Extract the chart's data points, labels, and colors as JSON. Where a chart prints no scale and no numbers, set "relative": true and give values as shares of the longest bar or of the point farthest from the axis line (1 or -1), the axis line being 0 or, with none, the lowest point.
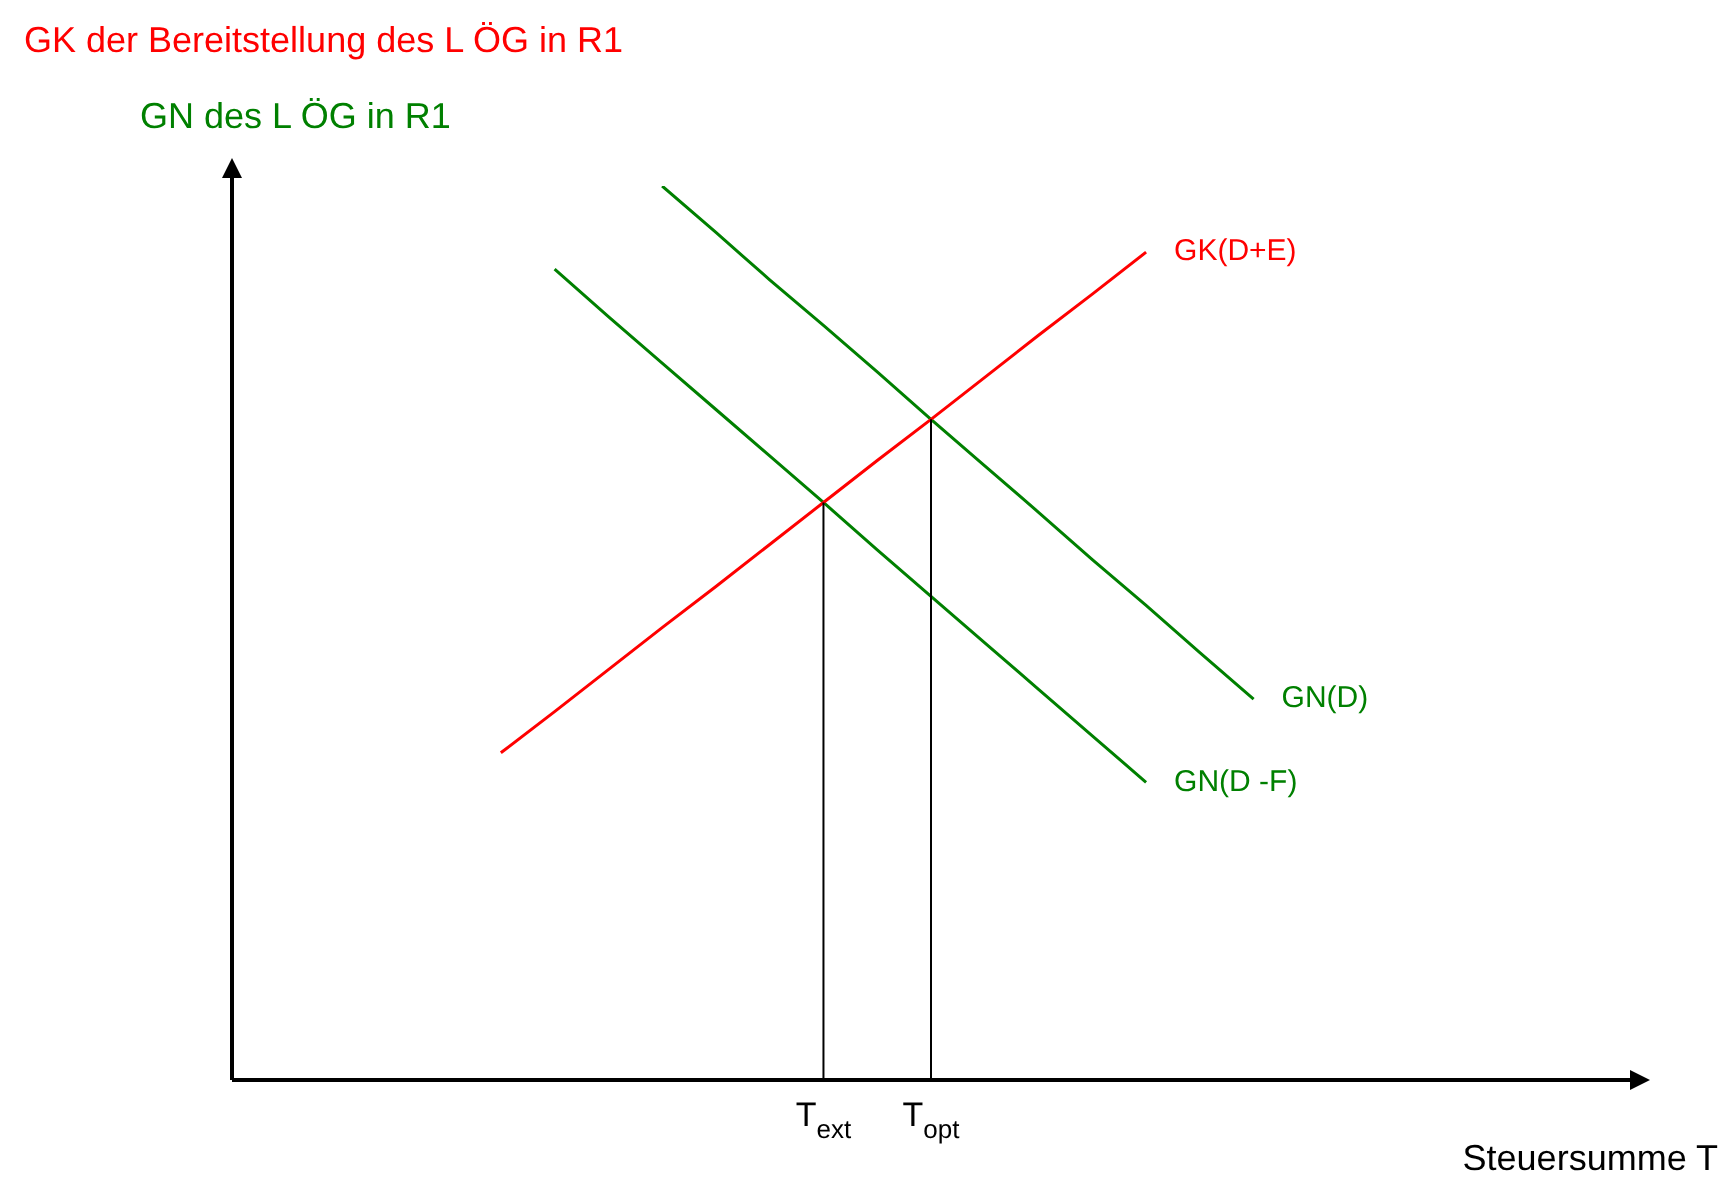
{
  "chart_data": {
    "type": "line",
    "relative": true,
    "ylabel": "GK der Bereitstellung des L ÖG in R1",
    "y2label": "GN des L ÖG in R1",
    "xlabel": "Steuersumme T",
    "legend": false,
    "grid": false,
    "marker": "none",
    "line_style": "solid",
    "categories": [
      null,
      null,
      null,
      null,
      null,
      null,
      null,
      null,
      null,
      null,
      null,
      "T$_{ext}$",
      null,
      "T$_{opt}$",
      null,
      null,
      null,
      null,
      null,
      null,
      null,
      null,
      null,
      null,
      null,
      null,
      null
    ],
    "series": [
      {
        "name": "GK(D+E)",
        "color": "#ff0000",
        "values": [
          null,
          null,
          null,
          null,
          null,
          0.366,
          0.412,
          0.459,
          0.506,
          0.552,
          0.599,
          0.646,
          0.693,
          0.739,
          0.786,
          0.833,
          0.879,
          0.926,
          null,
          null,
          null,
          null,
          null,
          null,
          null,
          null,
          null
        ]
      },
      {
        "name": "GN(D)",
        "color": "#008000",
        "values": [
          null,
          null,
          null,
          null,
          null,
          null,
          null,
          null,
          1,
          0.948,
          0.895,
          0.844,
          0.792,
          0.739,
          0.687,
          0.635,
          0.582,
          0.531,
          0.478,
          0.426,
          null,
          null,
          null,
          null,
          null,
          null,
          null
        ]
      },
      {
        "name": "GN(D -F)",
        "color": "#008000",
        "values": [
          null,
          null,
          null,
          null,
          null,
          null,
          0.907,
          0.854,
          0.802,
          0.75,
          0.698,
          0.646,
          0.593,
          0.541,
          0.489,
          0.437,
          0.385,
          0.333,
          null,
          null,
          null,
          null,
          null,
          null,
          null,
          null,
          null
        ]
      }
    ],
    "ref_lines": [
      {
        "axis": "x",
        "value": "T$_{ext}$",
        "color": "#000000"
      },
      {
        "axis": "x",
        "value": "T$_{opt}$",
        "color": "#000000"
      }
    ]
  }
}
